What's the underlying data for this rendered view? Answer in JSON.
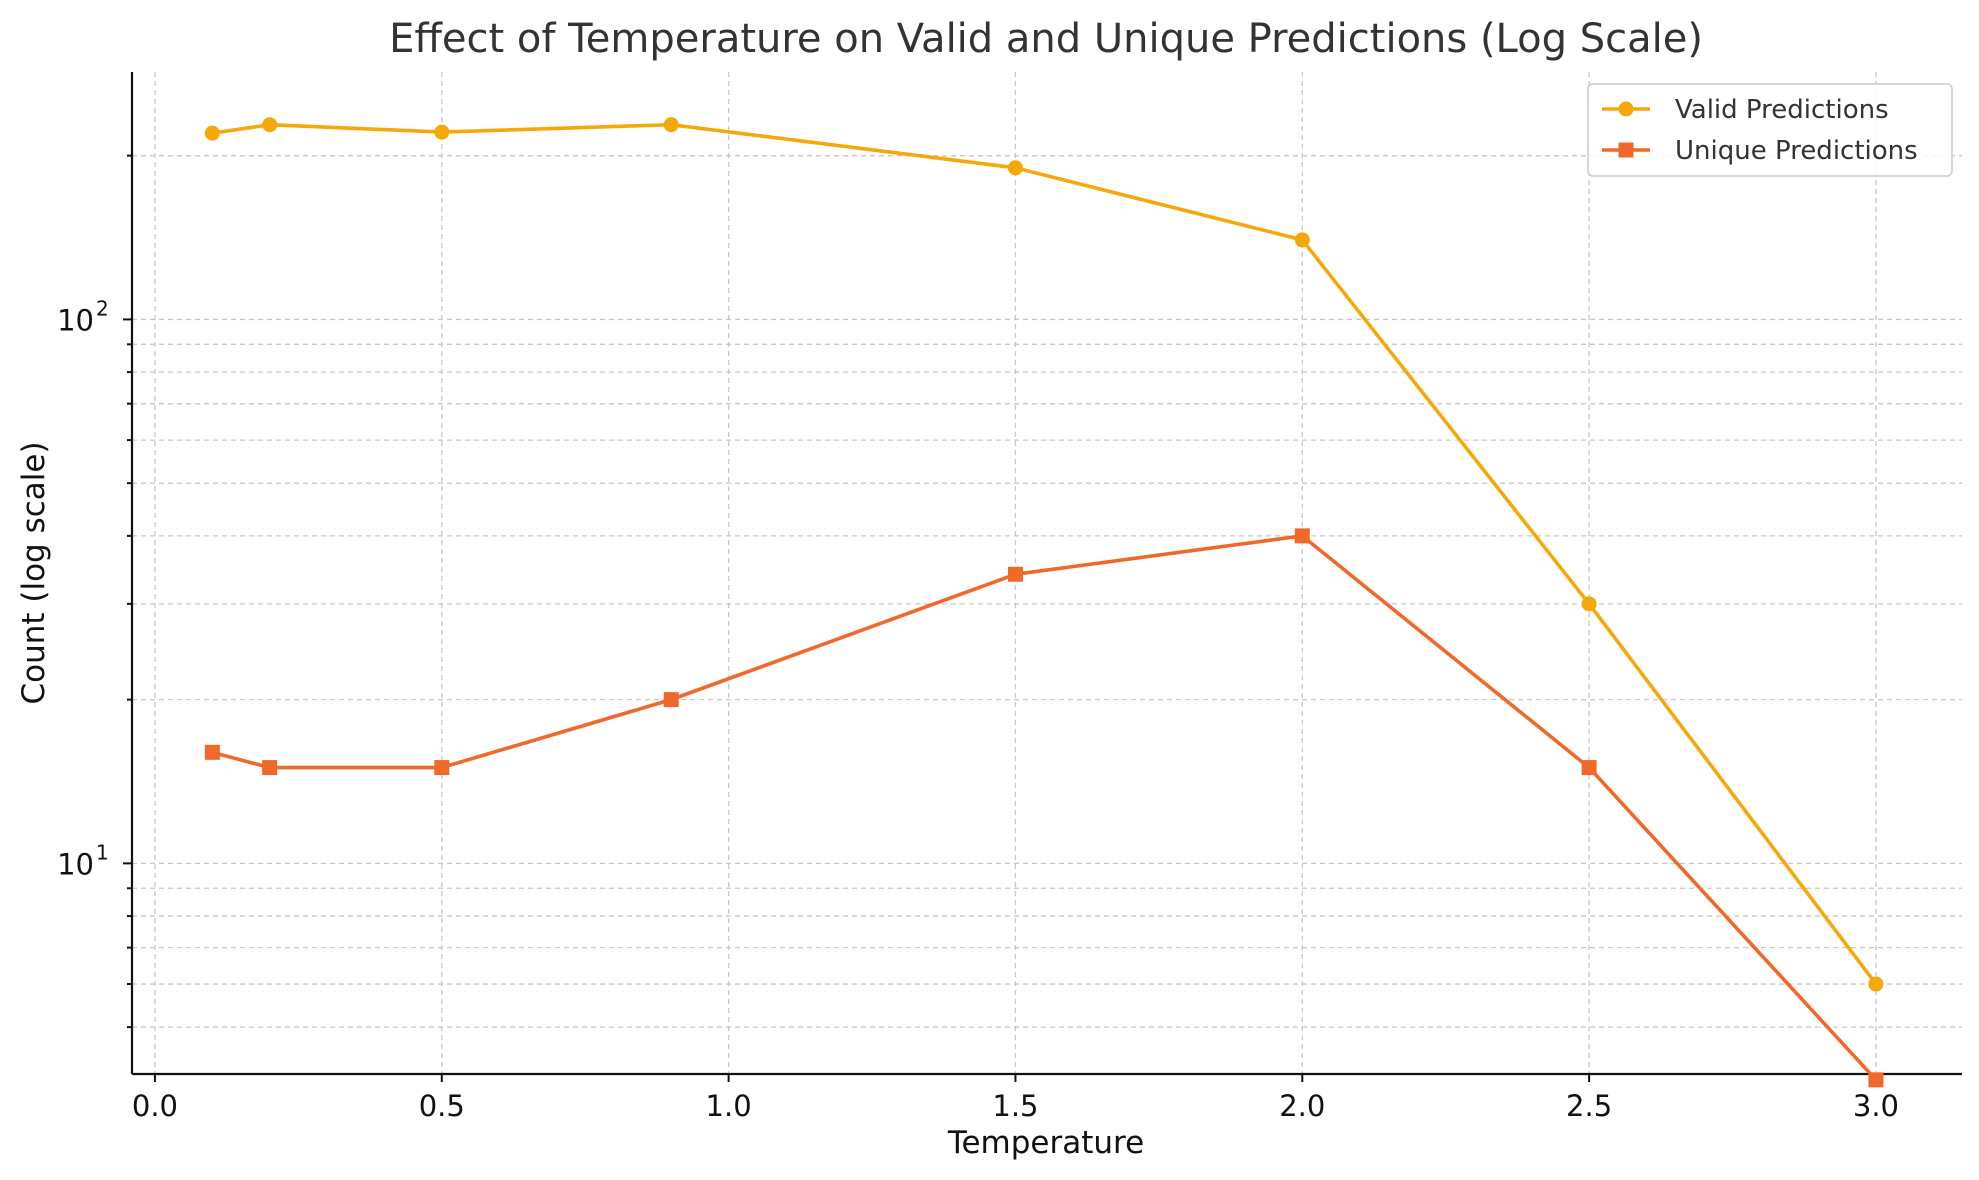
{
  "chart_data": {
    "type": "line",
    "title": "Effect of Temperature on Valid and Unique Predictions (Log Scale)",
    "xlabel": "Temperature",
    "ylabel": "Count (log scale)",
    "yscale": "log",
    "xlim": [
      -0.04,
      3.15
    ],
    "ylim": [
      4.1,
      285
    ],
    "grid": true,
    "legend_position": "top-right",
    "x_ticks": [
      "0.0",
      "0.5",
      "1.0",
      "1.5",
      "2.0",
      "2.5",
      "3.0"
    ],
    "y_ticks": [
      {
        "value": 10,
        "base": "10",
        "exp": "1"
      },
      {
        "value": 100,
        "base": "10",
        "exp": "2"
      }
    ],
    "x": [
      0.1,
      0.2,
      0.5,
      0.9,
      1.5,
      2.0,
      2.5,
      3.0
    ],
    "series": [
      {
        "name": "Valid Predictions",
        "color": "#f5a80a",
        "marker": "circle",
        "values": [
          220,
          228,
          221,
          228,
          190,
          140,
          30,
          6
        ]
      },
      {
        "name": "Unique Predictions",
        "color": "#f0682a",
        "marker": "square",
        "values": [
          16,
          15,
          15,
          20,
          34,
          40,
          15,
          4
        ]
      }
    ]
  }
}
